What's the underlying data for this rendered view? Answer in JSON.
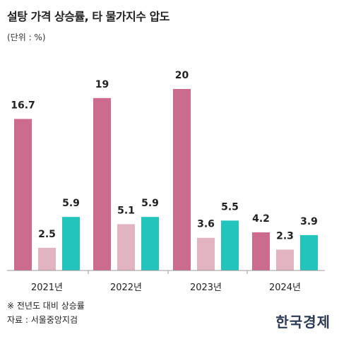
{
  "title": "설탕 가격 상승률, 타 물가지수 압도",
  "unit": "(단위 : %)",
  "note": "※ 전년도 대비 상승률",
  "source": "자료 : 서울중앙지검",
  "logo": "한국경제",
  "colors": {
    "series1": "#cc6b8f",
    "series2": "#e2b3c0",
    "series3": "#22c4bd",
    "axis": "#999999"
  },
  "chart_data": {
    "type": "bar",
    "title": "설탕 가격 상승률, 타 물가지수 압도",
    "xlabel": "",
    "ylabel": "",
    "ylim": [
      0,
      22
    ],
    "categories": [
      "2021년",
      "2022년",
      "2023년",
      "2024년"
    ],
    "series": [
      {
        "values": [
          16.7,
          19,
          20,
          4.2
        ],
        "labels": [
          "16.7",
          "19",
          "20",
          "4.2"
        ]
      },
      {
        "values": [
          2.5,
          5.1,
          3.6,
          2.3
        ],
        "labels": [
          "2.5",
          "5.1",
          "3.6",
          "2.3"
        ]
      },
      {
        "values": [
          5.9,
          5.9,
          5.5,
          3.9
        ],
        "labels": [
          "5.9",
          "5.9",
          "5.5",
          "3.9"
        ]
      }
    ]
  }
}
